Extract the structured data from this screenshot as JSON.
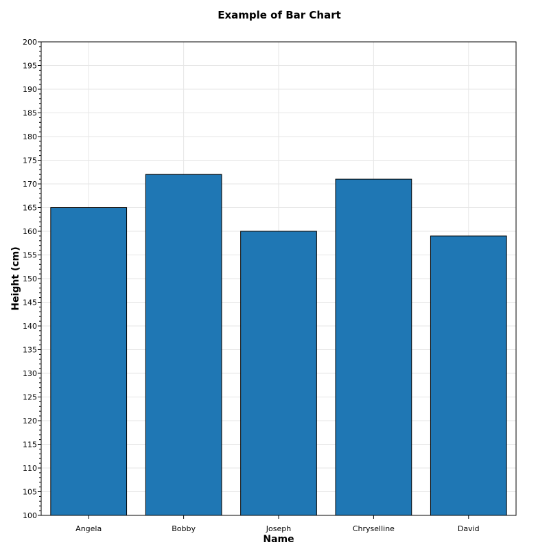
{
  "chart_data": {
    "type": "bar",
    "title": "Example of Bar Chart",
    "xlabel": "Name",
    "ylabel": "Height (cm)",
    "categories": [
      "Angela",
      "Bobby",
      "Joseph",
      "Chryselline",
      "David"
    ],
    "values": [
      165,
      172,
      160,
      171,
      159
    ],
    "ylim": [
      100,
      200
    ],
    "major_tick_step": 5,
    "minor_tick_step": 1,
    "grid": true,
    "legend": "none",
    "colors": {
      "bar_fill": "#1f77b4",
      "bar_edge": "#000000",
      "grid": "#e6e6e6",
      "axis": "#000000"
    }
  }
}
